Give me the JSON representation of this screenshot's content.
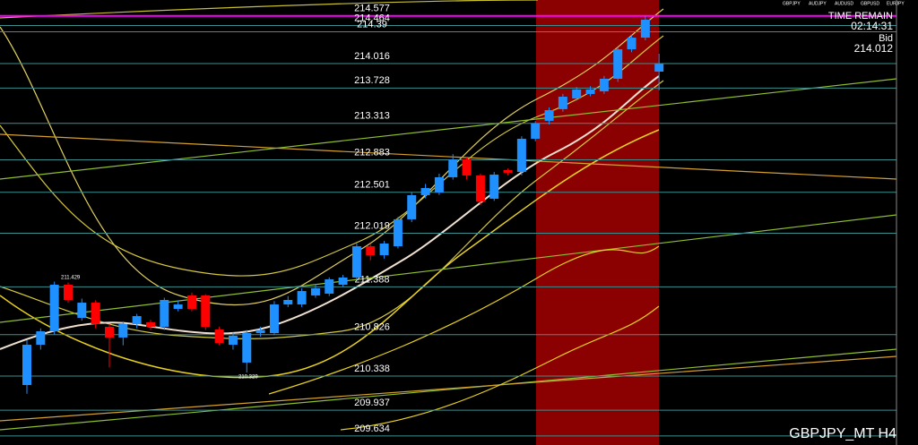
{
  "chart_data": {
    "type": "candlestick",
    "symbol": "GBPJPY_MT H4",
    "tabs": [
      "GBPJPY",
      "AUDJPY",
      "AUDUSD",
      "GBPUSD",
      "EURJPY"
    ],
    "time_remain_label": "TIME REMAIN",
    "time_remain": "02:14:31",
    "bid_label": "Bid",
    "bid": "214.012",
    "annotations": [
      "211.429",
      "210.329"
    ],
    "ylim": [
      209.527,
      214.764
    ],
    "up_color": "#1e90ff",
    "down_color": "#ff0000",
    "zone_color": "#8b0000",
    "levels": [
      {
        "price": 214.577,
        "color": "#ff00ff"
      },
      {
        "price": 214.464,
        "color": "#3d8f8f"
      },
      {
        "price": 214.39,
        "color": "#3d8f8f"
      },
      {
        "price": 214.016,
        "color": "#3d8f8f"
      },
      {
        "price": 213.728,
        "color": "#3d8f8f"
      },
      {
        "price": 213.313,
        "color": "#3d8f8f"
      },
      {
        "price": 212.883,
        "color": "#3d8f8f"
      },
      {
        "price": 212.501,
        "color": "#3d8f8f"
      },
      {
        "price": 212.019,
        "color": "#3d8f8f"
      },
      {
        "price": 211.388,
        "color": "#3d8f8f"
      },
      {
        "price": 210.826,
        "color": "#3d8f8f"
      },
      {
        "price": 210.338,
        "color": "#3d8f8f"
      },
      {
        "price": 209.937,
        "color": "#3d8f8f"
      },
      {
        "price": 209.634,
        "color": "#3d8f8f"
      }
    ],
    "open": [
      210.233,
      210.707,
      210.865,
      211.413,
      211.023,
      211.202,
      210.918,
      210.792,
      210.95,
      210.971,
      210.918,
      211.129,
      211.287,
      211.287,
      210.886,
      210.707,
      210.497,
      210.844,
      210.844,
      211.181,
      211.181,
      211.287,
      211.308,
      211.413,
      211.498,
      211.866,
      211.761,
      211.866,
      212.183,
      212.467,
      212.499,
      212.678,
      212.888,
      212.699,
      212.425,
      212.762,
      212.741,
      213.131,
      213.342,
      213.479,
      213.605,
      213.658,
      213.689,
      213.837,
      214.184,
      214.321,
      213.921
    ],
    "high": [
      210.76,
      210.9,
      211.45,
      211.44,
      211.25,
      211.23,
      210.95,
      210.98,
      211.07,
      211.0,
      211.26,
      211.23,
      211.32,
      211.3,
      210.92,
      210.85,
      210.88,
      210.92,
      211.22,
      211.28,
      211.37,
      211.42,
      211.5,
      211.53,
      211.9,
      211.9,
      211.93,
      212.21,
      212.5,
      212.6,
      212.72,
      212.95,
      212.91,
      212.72,
      212.74,
      212.78,
      213.16,
      213.34,
      213.5,
      213.66,
      213.74,
      213.75,
      213.87,
      214.21,
      214.35,
      214.577,
      214.132
    ],
    "low": [
      210.13,
      210.65,
      210.83,
      211.2,
      210.99,
      210.9,
      210.44,
      210.7,
      210.9,
      210.88,
      210.88,
      211.1,
      211.1,
      210.88,
      210.7,
      210.65,
      210.38,
      210.8,
      210.82,
      211.15,
      211.15,
      211.26,
      211.28,
      211.39,
      211.47,
      211.7,
      211.72,
      211.84,
      212.15,
      212.43,
      212.47,
      212.65,
      212.65,
      212.35,
      212.4,
      212.7,
      212.7,
      213.1,
      213.3,
      213.45,
      213.58,
      213.63,
      213.66,
      213.8,
      214.15,
      214.29,
      213.7
    ],
    "close": [
      210.707,
      210.865,
      211.413,
      211.234,
      211.202,
      210.95,
      210.792,
      210.95,
      211.044,
      210.918,
      211.234,
      211.181,
      211.129,
      210.918,
      210.728,
      210.813,
      210.844,
      210.88,
      211.181,
      211.234,
      211.339,
      211.371,
      211.477,
      211.498,
      211.866,
      211.761,
      211.898,
      212.183,
      212.467,
      212.551,
      212.678,
      212.888,
      212.699,
      212.393,
      212.709,
      212.731,
      213.131,
      213.31,
      213.468,
      213.626,
      213.71,
      213.71,
      213.837,
      214.184,
      214.321,
      214.532,
      214.012
    ]
  }
}
